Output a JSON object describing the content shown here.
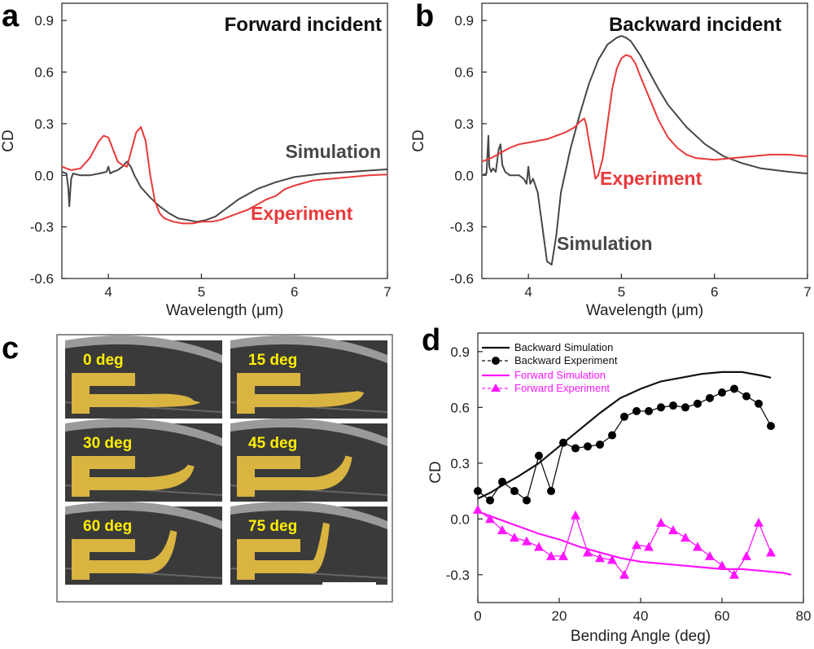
{
  "panel_letters": {
    "a": "a",
    "b": "b",
    "c": "c",
    "d": "d"
  },
  "colors": {
    "simulation": "#474747",
    "experiment": "#e8393a",
    "backward": "#111111",
    "forward": "#ff16ff",
    "gold": "#d9b441",
    "sem_bg": "#3a3a3a"
  },
  "chart_data": [
    {
      "id": "a",
      "type": "line",
      "title": "Forward incident",
      "xlabel": "Wavelength (μm)",
      "ylabel": "CD",
      "xlim": [
        3.5,
        7
      ],
      "ylim": [
        -0.6,
        1.0
      ],
      "xticks": [
        4,
        5,
        6,
        7
      ],
      "yticks": [
        -0.6,
        -0.3,
        0.0,
        0.3,
        0.6,
        0.9
      ],
      "ytick_labels": [
        "-0.6",
        "-0.3",
        "0.0",
        "0.3",
        "0.6",
        "0.9"
      ],
      "grid": false,
      "series": [
        {
          "name": "Simulation",
          "x": [
            3.5,
            3.55,
            3.57,
            3.58,
            3.6,
            3.62,
            3.7,
            3.8,
            3.9,
            3.98,
            4.0,
            4.02,
            4.05,
            4.1,
            4.15,
            4.2,
            4.24,
            4.28,
            4.35,
            4.45,
            4.55,
            4.65,
            4.75,
            4.85,
            4.95,
            5.05,
            5.15,
            5.25,
            5.4,
            5.6,
            5.8,
            6.0,
            6.3,
            6.6,
            7.0
          ],
          "y": [
            0.02,
            0.01,
            -0.08,
            -0.18,
            -0.02,
            0.01,
            0.0,
            0.0,
            0.01,
            0.02,
            0.05,
            0.01,
            0.02,
            0.03,
            0.05,
            0.08,
            0.05,
            0.0,
            -0.07,
            -0.13,
            -0.18,
            -0.22,
            -0.25,
            -0.26,
            -0.27,
            -0.26,
            -0.24,
            -0.2,
            -0.14,
            -0.08,
            -0.04,
            -0.01,
            0.01,
            0.02,
            0.035
          ]
        },
        {
          "name": "Experiment",
          "x": [
            3.5,
            3.6,
            3.7,
            3.8,
            3.9,
            3.95,
            4.0,
            4.05,
            4.1,
            4.15,
            4.2,
            4.25,
            4.3,
            4.35,
            4.4,
            4.45,
            4.5,
            4.55,
            4.6,
            4.7,
            4.8,
            4.9,
            5.0,
            5.1,
            5.2,
            5.3,
            5.4,
            5.5,
            5.6,
            5.7,
            5.8,
            5.9,
            6.0,
            6.2,
            6.4,
            6.6,
            6.8,
            7.0
          ],
          "y": [
            0.05,
            0.03,
            0.04,
            0.1,
            0.2,
            0.23,
            0.22,
            0.15,
            0.08,
            0.06,
            0.05,
            0.15,
            0.25,
            0.28,
            0.2,
            0.0,
            -0.15,
            -0.22,
            -0.25,
            -0.27,
            -0.28,
            -0.28,
            -0.27,
            -0.27,
            -0.26,
            -0.24,
            -0.22,
            -0.2,
            -0.17,
            -0.14,
            -0.12,
            -0.08,
            -0.06,
            -0.03,
            -0.02,
            -0.01,
            0.0,
            0.005
          ]
        }
      ],
      "labels": {
        "simulation": "Simulation",
        "experiment": "Experiment"
      }
    },
    {
      "id": "b",
      "type": "line",
      "title": "Backward incident",
      "xlabel": "Wavelength (μm)",
      "ylabel": "CD",
      "xlim": [
        3.5,
        7
      ],
      "ylim": [
        -0.6,
        1.0
      ],
      "xticks": [
        4,
        5,
        6,
        7
      ],
      "yticks": [
        -0.6,
        -0.3,
        0.0,
        0.3,
        0.6,
        0.9
      ],
      "ytick_labels": [
        "-0.6",
        "-0.3",
        "0.0",
        "0.3",
        "0.6",
        "0.9"
      ],
      "grid": false,
      "series": [
        {
          "name": "Simulation",
          "x": [
            3.5,
            3.55,
            3.57,
            3.58,
            3.6,
            3.62,
            3.65,
            3.68,
            3.7,
            3.72,
            3.75,
            3.8,
            3.9,
            3.95,
            3.98,
            4.0,
            4.02,
            4.05,
            4.1,
            4.15,
            4.2,
            4.25,
            4.3,
            4.35,
            4.45,
            4.55,
            4.65,
            4.75,
            4.85,
            4.95,
            5.0,
            5.05,
            5.1,
            5.2,
            5.3,
            5.4,
            5.5,
            5.7,
            5.9,
            6.1,
            6.3,
            6.5,
            6.8,
            7.0
          ],
          "y": [
            0.0,
            0.01,
            0.23,
            0.05,
            0.02,
            0.04,
            0.02,
            0.15,
            0.18,
            0.06,
            0.02,
            0.0,
            0.0,
            -0.02,
            -0.05,
            0.05,
            -0.05,
            -0.02,
            -0.1,
            -0.3,
            -0.5,
            -0.52,
            -0.35,
            -0.1,
            0.15,
            0.35,
            0.53,
            0.67,
            0.76,
            0.8,
            0.81,
            0.8,
            0.78,
            0.7,
            0.6,
            0.5,
            0.41,
            0.28,
            0.18,
            0.11,
            0.07,
            0.04,
            0.02,
            0.01
          ]
        },
        {
          "name": "Experiment",
          "x": [
            3.5,
            3.6,
            3.7,
            3.8,
            3.9,
            4.0,
            4.1,
            4.2,
            4.3,
            4.4,
            4.5,
            4.55,
            4.6,
            4.62,
            4.65,
            4.7,
            4.72,
            4.75,
            4.8,
            4.85,
            4.9,
            4.95,
            5.0,
            5.05,
            5.1,
            5.15,
            5.2,
            5.3,
            5.4,
            5.5,
            5.6,
            5.7,
            5.8,
            6.0,
            6.2,
            6.4,
            6.6,
            6.8,
            7.0
          ],
          "y": [
            0.08,
            0.1,
            0.13,
            0.16,
            0.18,
            0.19,
            0.2,
            0.21,
            0.23,
            0.25,
            0.28,
            0.31,
            0.33,
            0.3,
            0.2,
            0.05,
            -0.02,
            0.0,
            0.1,
            0.3,
            0.5,
            0.62,
            0.68,
            0.7,
            0.69,
            0.65,
            0.58,
            0.45,
            0.32,
            0.22,
            0.16,
            0.12,
            0.1,
            0.09,
            0.1,
            0.11,
            0.12,
            0.12,
            0.11
          ]
        }
      ],
      "labels": {
        "simulation": "Simulation",
        "experiment": "Experiment"
      }
    },
    {
      "id": "d",
      "type": "line",
      "xlabel": "Bending Angle (deg)",
      "ylabel": "CD",
      "xlim": [
        0,
        80
      ],
      "ylim": [
        -0.45,
        1.0
      ],
      "xticks": [
        0,
        20,
        40,
        60,
        80
      ],
      "yticks": [
        -0.3,
        0.0,
        0.3,
        0.6,
        0.9
      ],
      "ytick_labels": [
        "-0.3",
        "0.0",
        "0.3",
        "0.6",
        "0.9"
      ],
      "grid": false,
      "legend_position": "top-left",
      "series": [
        {
          "name": "Backward Simulation",
          "marker": "none",
          "x": [
            0,
            3,
            6,
            10,
            15,
            20,
            25,
            30,
            35,
            40,
            45,
            50,
            55,
            60,
            65,
            70,
            72
          ],
          "y": [
            0.11,
            0.14,
            0.18,
            0.23,
            0.3,
            0.39,
            0.48,
            0.57,
            0.65,
            0.7,
            0.74,
            0.76,
            0.78,
            0.79,
            0.79,
            0.77,
            0.76
          ]
        },
        {
          "name": "Backward Experiment",
          "marker": "circle",
          "x": [
            0,
            3,
            6,
            9,
            12,
            15,
            18,
            21,
            24,
            27,
            30,
            33,
            36,
            39,
            42,
            45,
            48,
            51,
            54,
            57,
            60,
            63,
            66,
            69,
            72
          ],
          "y": [
            0.15,
            0.1,
            0.2,
            0.15,
            0.1,
            0.34,
            0.15,
            0.41,
            0.38,
            0.39,
            0.4,
            0.45,
            0.55,
            0.58,
            0.58,
            0.6,
            0.61,
            0.6,
            0.62,
            0.65,
            0.68,
            0.7,
            0.66,
            0.62,
            0.5
          ]
        },
        {
          "name": "Forward Simulation",
          "marker": "none",
          "x": [
            0,
            5,
            10,
            15,
            20,
            25,
            30,
            35,
            40,
            45,
            50,
            55,
            60,
            65,
            70,
            75,
            77
          ],
          "y": [
            0.04,
            0.0,
            -0.04,
            -0.08,
            -0.11,
            -0.15,
            -0.18,
            -0.21,
            -0.23,
            -0.24,
            -0.25,
            -0.26,
            -0.27,
            -0.27,
            -0.28,
            -0.29,
            -0.3
          ]
        },
        {
          "name": "Forward Experiment",
          "marker": "triangle",
          "x": [
            0,
            3,
            6,
            9,
            12,
            15,
            18,
            21,
            24,
            27,
            30,
            33,
            36,
            39,
            42,
            45,
            48,
            51,
            54,
            57,
            60,
            63,
            66,
            69,
            72
          ],
          "y": [
            0.05,
            0.0,
            -0.06,
            -0.1,
            -0.12,
            -0.15,
            -0.2,
            -0.2,
            0.02,
            -0.18,
            -0.21,
            -0.22,
            -0.3,
            -0.14,
            -0.15,
            -0.02,
            -0.06,
            -0.1,
            -0.15,
            -0.2,
            -0.25,
            -0.3,
            -0.2,
            -0.02,
            -0.18
          ]
        }
      ]
    }
  ],
  "panel_c": {
    "images": [
      {
        "label": "0 deg",
        "angle": 0
      },
      {
        "label": "15 deg",
        "angle": 15
      },
      {
        "label": "30 deg",
        "angle": 30
      },
      {
        "label": "45 deg",
        "angle": 45
      },
      {
        "label": "60 deg",
        "angle": 60
      },
      {
        "label": "75 deg",
        "angle": 75
      }
    ]
  }
}
